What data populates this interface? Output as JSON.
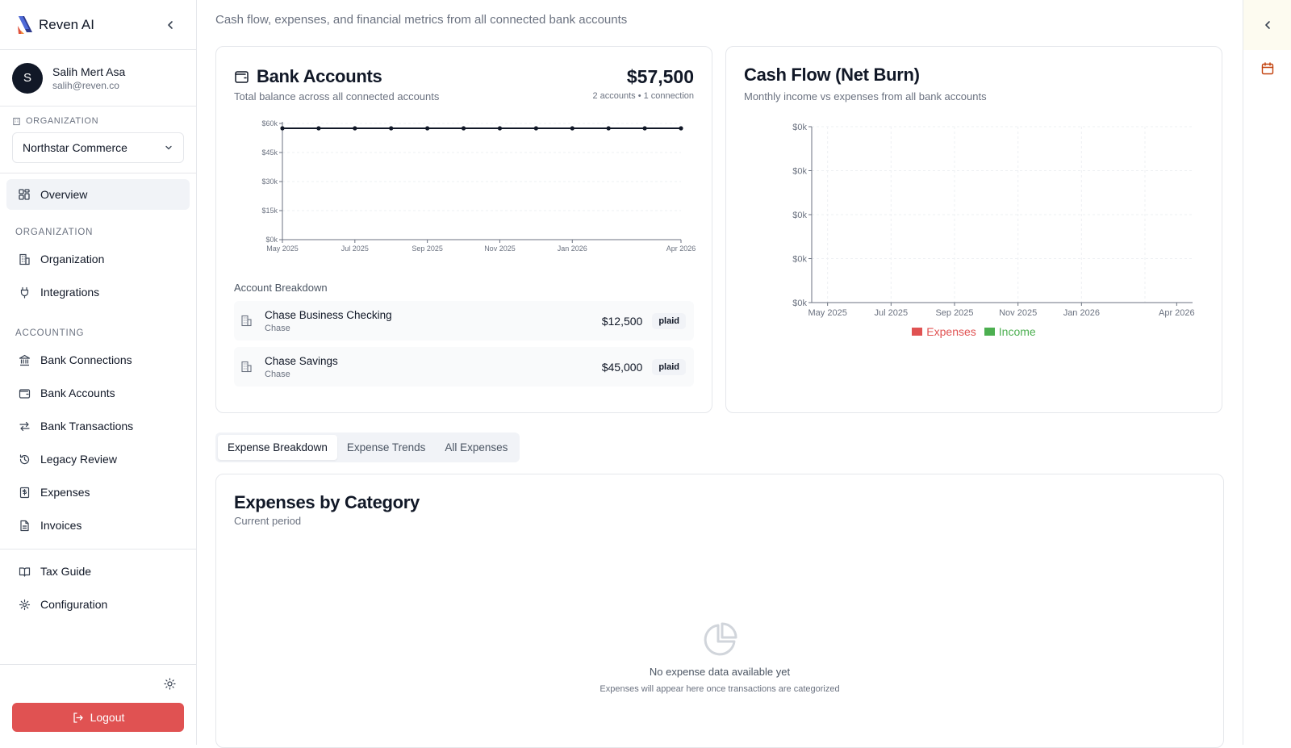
{
  "brand": {
    "name": "Reven AI"
  },
  "user": {
    "initial": "S",
    "name": "Salih Mert Asa",
    "email": "salih@reven.co"
  },
  "org": {
    "label": "ORGANIZATION",
    "selected": "Northstar Commerce"
  },
  "nav": {
    "overview": "Overview",
    "section_org": "ORGANIZATION",
    "organization": "Organization",
    "integrations": "Integrations",
    "section_accounting": "ACCOUNTING",
    "bank_connections": "Bank Connections",
    "bank_accounts": "Bank Accounts",
    "bank_transactions": "Bank Transactions",
    "legacy_review": "Legacy Review",
    "expenses": "Expenses",
    "invoices": "Invoices",
    "tax_guide": "Tax Guide",
    "configuration": "Configuration"
  },
  "logout_label": "Logout",
  "page": {
    "description": "Cash flow, expenses, and financial metrics from all connected bank accounts"
  },
  "bank_card": {
    "title": "Bank Accounts",
    "subtitle": "Total balance across all connected accounts",
    "total": "$57,500",
    "meta": "2 accounts • 1 connection",
    "breakdown_label": "Account Breakdown",
    "accounts": [
      {
        "name": "Chase Business Checking",
        "institution": "Chase",
        "amount": "$12,500",
        "source": "plaid"
      },
      {
        "name": "Chase Savings",
        "institution": "Chase",
        "amount": "$45,000",
        "source": "plaid"
      }
    ]
  },
  "cash_card": {
    "title": "Cash Flow (Net Burn)",
    "subtitle": "Monthly income vs expenses from all bank accounts"
  },
  "tabs": [
    "Expense Breakdown",
    "Expense Trends",
    "All Expenses"
  ],
  "expenses_card": {
    "title": "Expenses by Category",
    "subtitle": "Current period",
    "empty_title": "No expense data available yet",
    "empty_sub": "Expenses will appear here once transactions are categorized"
  },
  "colors": {
    "expenses": "#e05252",
    "income": "#4caf50",
    "logout": "#e05252"
  },
  "chart_data": [
    {
      "type": "line",
      "x": [
        "May 2025",
        "Jun 2025",
        "Jul 2025",
        "Aug 2025",
        "Sep 2025",
        "Oct 2025",
        "Nov 2025",
        "Dec 2025",
        "Jan 2026",
        "Feb 2026",
        "Mar 2026",
        "Apr 2026"
      ],
      "x_tick_labels": [
        "May 2025",
        "Jul 2025",
        "Sep 2025",
        "Nov 2025",
        "Jan 2026",
        "Apr 2026"
      ],
      "series": [
        {
          "values": [
            57500,
            57500,
            57500,
            57500,
            57500,
            57500,
            57500,
            57500,
            57500,
            57500,
            57500,
            57500
          ]
        }
      ],
      "y_tick_labels": [
        "$0k",
        "$15k",
        "$30k",
        "$45k",
        "$60k"
      ],
      "ylim": [
        0,
        60000
      ],
      "grid": true,
      "xlabel": "",
      "ylabel": ""
    },
    {
      "type": "bar",
      "x": [
        "May 2025",
        "Jun 2025",
        "Jul 2025",
        "Aug 2025",
        "Sep 2025",
        "Oct 2025",
        "Nov 2025",
        "Dec 2025",
        "Jan 2026",
        "Feb 2026",
        "Mar 2026",
        "Apr 2026"
      ],
      "x_tick_labels": [
        "May 2025",
        "Jul 2025",
        "Sep 2025",
        "Nov 2025",
        "Jan 2026",
        "Apr 2026"
      ],
      "series": [
        {
          "name": "Expenses",
          "values": [
            0,
            0,
            0,
            0,
            0,
            0,
            0,
            0,
            0,
            0,
            0,
            0
          ]
        },
        {
          "name": "Income",
          "values": [
            0,
            0,
            0,
            0,
            0,
            0,
            0,
            0,
            0,
            0,
            0,
            0
          ]
        }
      ],
      "y_tick_labels": [
        "$0k",
        "$0k",
        "$0k",
        "$0k",
        "$0k"
      ],
      "grid": true,
      "legend": "bottom",
      "xlabel": "",
      "ylabel": ""
    }
  ]
}
